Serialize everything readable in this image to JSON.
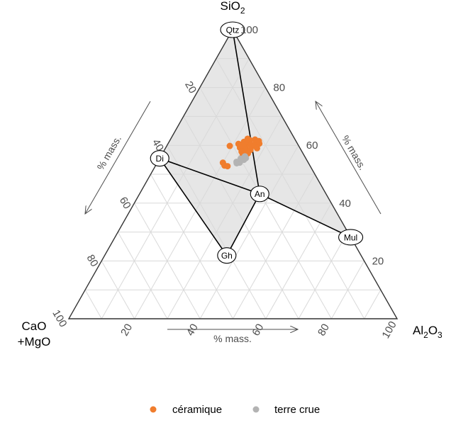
{
  "chart_data": {
    "type": "scatter",
    "subtype": "ternary",
    "apices": {
      "top": {
        "main": "SiO",
        "sub": "2"
      },
      "right": {
        "main": "Al",
        "sub": "2",
        "main2": "O",
        "sub2": "3"
      },
      "left": {
        "line1": "CaO",
        "line2": "+MgO"
      }
    },
    "axis_titles": {
      "left": "% mass.",
      "right": "% mass.",
      "bottom": "% mass."
    },
    "ticks": {
      "left": [
        "20",
        "40",
        "60",
        "80",
        "100"
      ],
      "right": [
        "20",
        "40",
        "60",
        "80",
        "100"
      ],
      "bottom": [
        "20",
        "40",
        "60",
        "80",
        "100"
      ]
    },
    "grid": true,
    "minerals": [
      {
        "label": "Qtz",
        "si": 100,
        "al": 0
      },
      {
        "label": "Di",
        "si": 55.5,
        "al": 0
      },
      {
        "label": "An",
        "si": 43.2,
        "al": 36.6
      },
      {
        "label": "Mul",
        "si": 28.2,
        "al": 71.8
      },
      {
        "label": "Gh",
        "si": 21.9,
        "al": 37.2
      }
    ],
    "tie_lines": [
      [
        "Qtz",
        "An"
      ],
      [
        "Di",
        "An"
      ],
      [
        "An",
        "Mul"
      ],
      [
        "Di",
        "Gh"
      ],
      [
        "Gh",
        "An"
      ]
    ],
    "shaded_region": [
      "Qtz",
      "Mul",
      "An",
      "Gh",
      "Di"
    ],
    "legend_position": "bottom",
    "series": [
      {
        "name": "céramique",
        "color": "#f07d2d",
        "points": [
          {
            "si": 60.5,
            "al": 21.5
          },
          {
            "si": 61.2,
            "al": 22.8
          },
          {
            "si": 60.8,
            "al": 24.0
          },
          {
            "si": 61.8,
            "al": 24.3
          },
          {
            "si": 60.2,
            "al": 25.5
          },
          {
            "si": 59.5,
            "al": 24.2
          },
          {
            "si": 62.0,
            "al": 25.8
          },
          {
            "si": 58.8,
            "al": 23.5
          },
          {
            "si": 61.0,
            "al": 26.5
          },
          {
            "si": 59.8,
            "al": 26.8
          },
          {
            "si": 60.6,
            "al": 27.8
          },
          {
            "si": 59.2,
            "al": 22.6
          },
          {
            "si": 58.3,
            "al": 25.0
          },
          {
            "si": 57.8,
            "al": 23.8
          },
          {
            "si": 62.3,
            "al": 23.4
          },
          {
            "si": 61.5,
            "al": 27.2
          },
          {
            "si": 59.0,
            "al": 27.9
          },
          {
            "si": 58.4,
            "al": 26.2
          },
          {
            "si": 57.2,
            "al": 26.0
          },
          {
            "si": 56.5,
            "al": 24.8
          },
          {
            "si": 60.0,
            "al": 23.2
          },
          {
            "si": 54.0,
            "al": 20.0
          },
          {
            "si": 53.0,
            "al": 21.0
          },
          {
            "si": 52.8,
            "al": 22.0
          },
          {
            "si": 59.8,
            "al": 19.2
          }
        ]
      },
      {
        "name": "terre crue",
        "color": "#b3b3b3",
        "points": [
          {
            "si": 54.7,
            "al": 24.9
          },
          {
            "si": 54.3,
            "al": 24.0
          },
          {
            "si": 55.0,
            "al": 25.9
          },
          {
            "si": 55.4,
            "al": 24.7
          },
          {
            "si": 55.6,
            "al": 26.2
          },
          {
            "si": 54.0,
            "al": 25.1
          },
          {
            "si": 53.8,
            "al": 24.3
          },
          {
            "si": 56.2,
            "al": 25.6
          },
          {
            "si": 55.2,
            "al": 25.0
          }
        ]
      }
    ]
  }
}
